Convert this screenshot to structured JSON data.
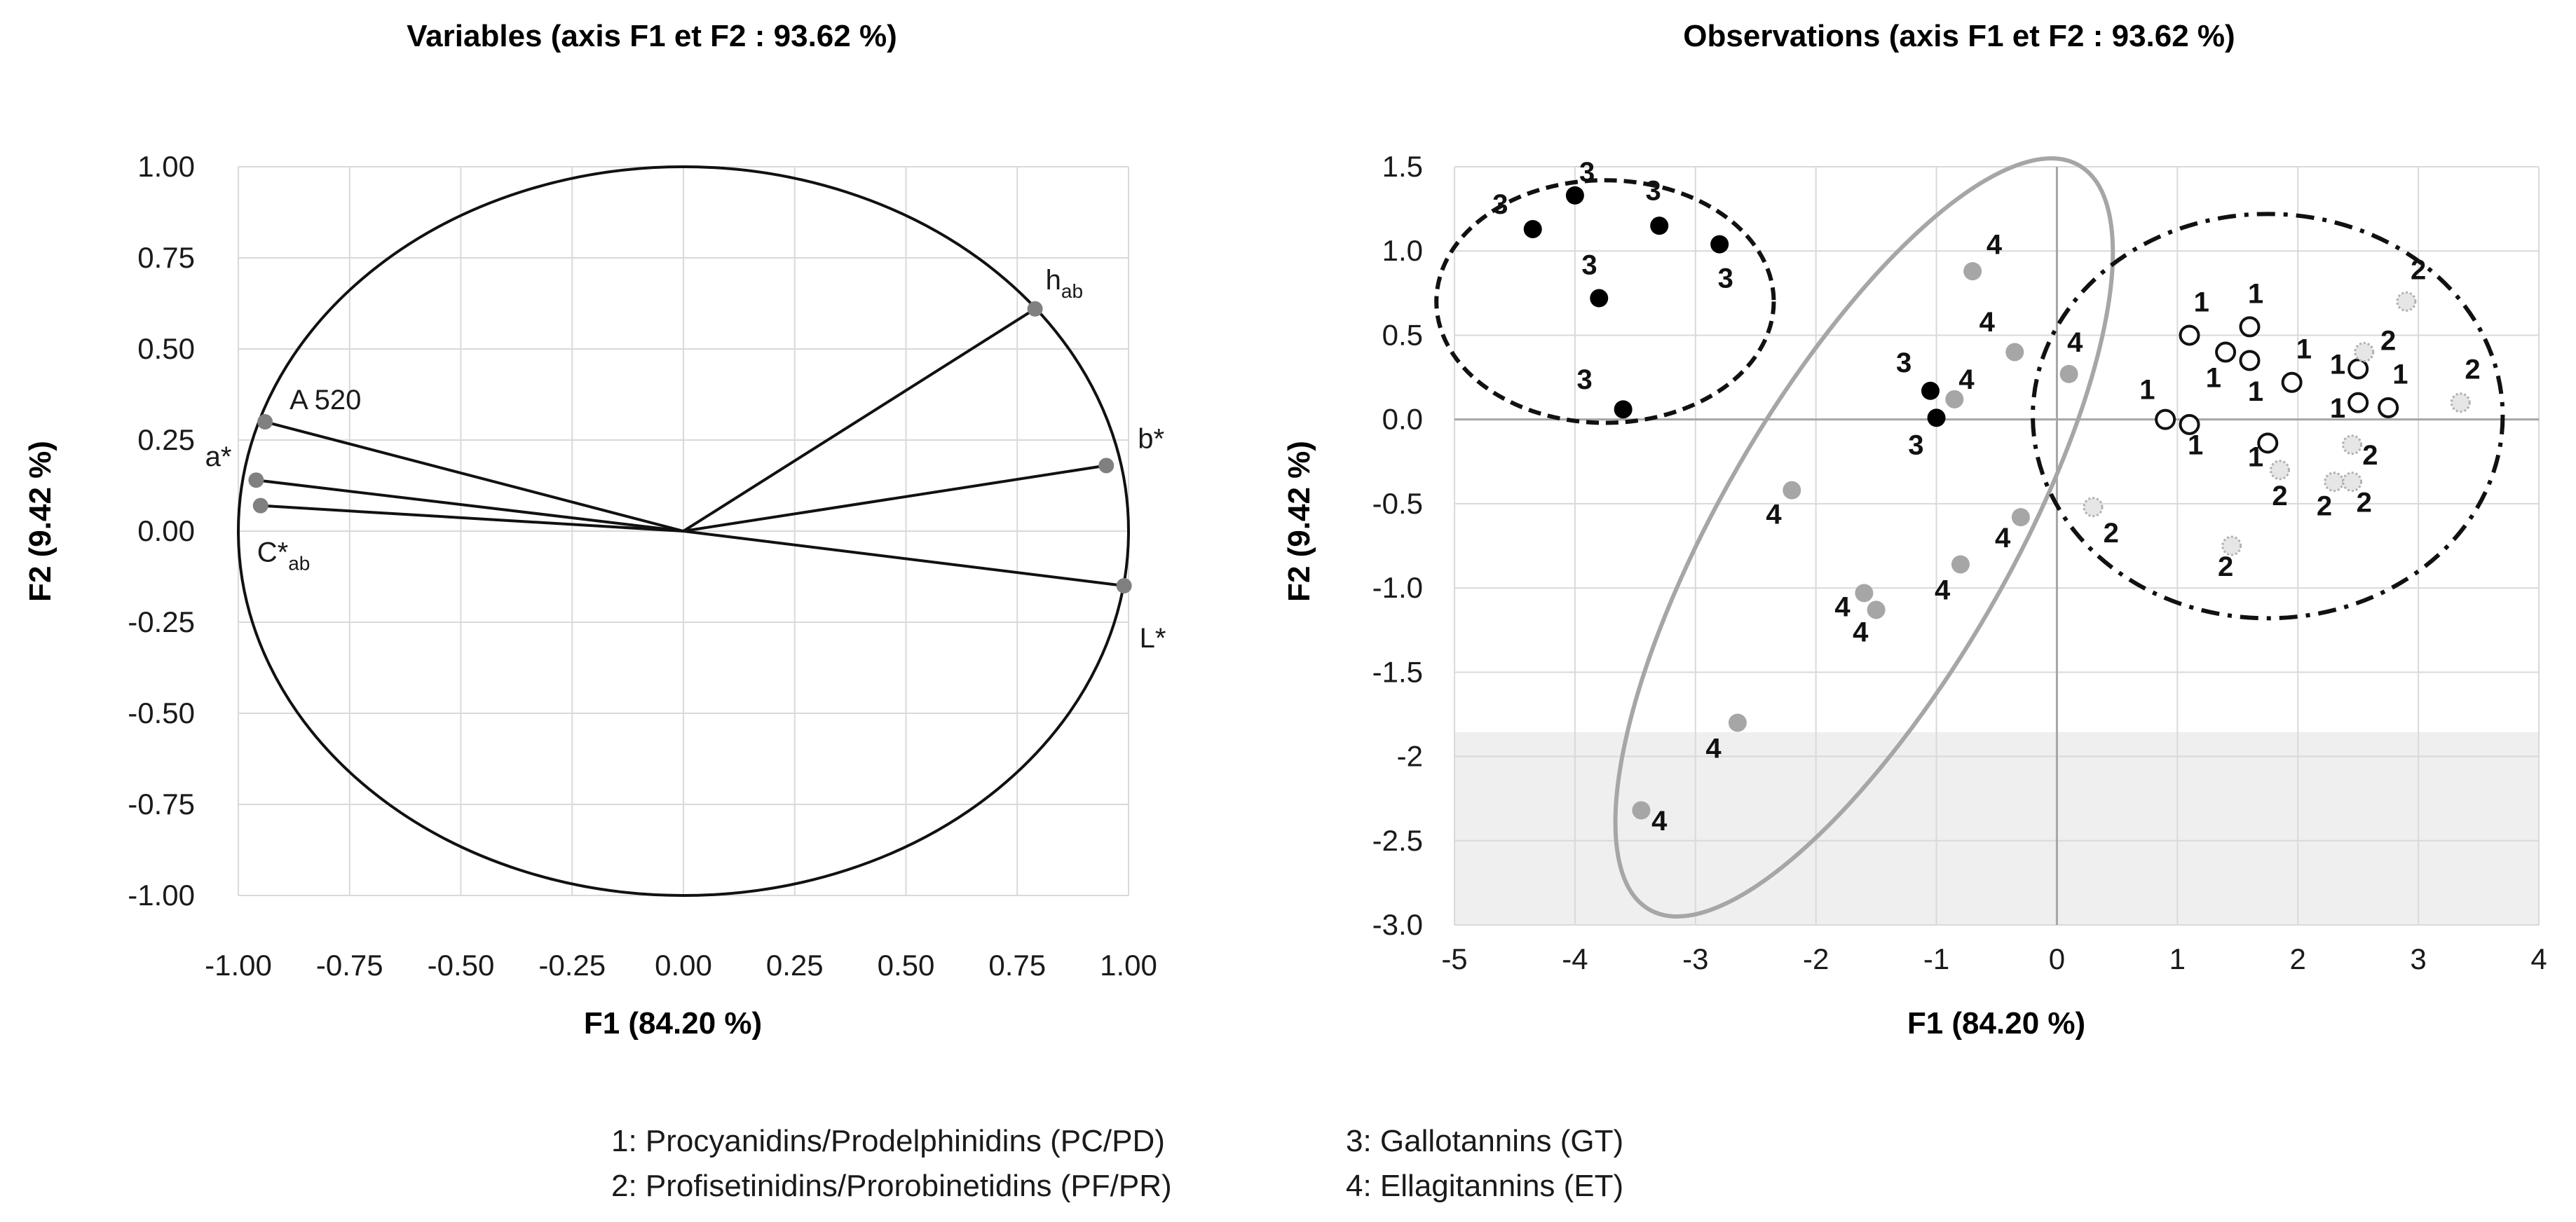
{
  "chart_data": [
    {
      "type": "scatter",
      "subtype": "correlation-circle",
      "title": "Variables (axis F1 et F2 : 93.62 %)",
      "xlabel": "F1 (84.20 %)",
      "ylabel": "F2 (9.42 %)",
      "xlim": [
        -1.0,
        1.0
      ],
      "ylim": [
        -1.0,
        1.0
      ],
      "x_ticks": [
        "-1.00",
        "-0.75",
        "-0.50",
        "-0.25",
        "0.00",
        "0.25",
        "0.50",
        "0.75",
        "1.00"
      ],
      "y_ticks": [
        "1.00",
        "0.75",
        "0.50",
        "0.25",
        "0.00",
        "-0.25",
        "-0.50",
        "-0.75",
        "-1.00"
      ],
      "grid": true,
      "variables": [
        {
          "name": "h",
          "sub": "ab",
          "x": 0.79,
          "y": 0.61
        },
        {
          "name": "b*",
          "sub": "",
          "x": 0.95,
          "y": 0.18
        },
        {
          "name": "L*",
          "sub": "",
          "x": 0.99,
          "y": -0.15
        },
        {
          "name": "A 520",
          "sub": "",
          "x": -0.94,
          "y": 0.3
        },
        {
          "name": "a*",
          "sub": "",
          "x": -0.96,
          "y": 0.14
        },
        {
          "name": "C*",
          "sub": "ab",
          "x": -0.95,
          "y": 0.07
        }
      ]
    },
    {
      "type": "scatter",
      "title": "Observations (axis F1 et F2 : 93.62 %)",
      "xlabel": "F1 (84.20 %)",
      "ylabel": "F2 (9.42 %)",
      "xlim": [
        -5,
        4
      ],
      "ylim": [
        -3.0,
        1.5
      ],
      "x_ticks": [
        "-5",
        "-4",
        "-3",
        "-2",
        "-1",
        "0",
        "1",
        "2",
        "3",
        "4"
      ],
      "y_ticks": [
        "1.5",
        "1.0",
        "0.5",
        "0.0",
        "-0.5",
        "-1.0",
        "-1.5",
        "-2",
        "-2.5",
        "-3.0"
      ],
      "grid": true,
      "series": [
        {
          "name": "1",
          "style": "open-circle",
          "points": [
            [
              1.1,
              0.5
            ],
            [
              1.6,
              0.55
            ],
            [
              1.4,
              0.4
            ],
            [
              1.6,
              0.35
            ],
            [
              1.95,
              0.22
            ],
            [
              2.5,
              0.3
            ],
            [
              2.5,
              0.1
            ],
            [
              2.75,
              0.07
            ],
            [
              0.9,
              0.0
            ],
            [
              1.1,
              -0.03
            ],
            [
              1.75,
              -0.14
            ]
          ]
        },
        {
          "name": "2",
          "style": "dotted-circle",
          "points": [
            [
              2.9,
              0.7
            ],
            [
              2.55,
              0.4
            ],
            [
              3.35,
              0.1
            ],
            [
              2.45,
              -0.15
            ],
            [
              1.85,
              -0.3
            ],
            [
              2.3,
              -0.37
            ],
            [
              2.45,
              -0.37
            ],
            [
              1.45,
              -0.75
            ],
            [
              0.3,
              -0.52
            ]
          ]
        },
        {
          "name": "3",
          "style": "filled-black",
          "points": [
            [
              -4.0,
              1.33
            ],
            [
              -4.35,
              1.13
            ],
            [
              -3.3,
              1.15
            ],
            [
              -2.8,
              1.04
            ],
            [
              -3.8,
              0.72
            ],
            [
              -3.6,
              0.06
            ],
            [
              -1.05,
              0.17
            ],
            [
              -1.0,
              0.01
            ]
          ]
        },
        {
          "name": "4",
          "style": "filled-gray",
          "points": [
            [
              -0.7,
              0.88
            ],
            [
              -0.35,
              0.4
            ],
            [
              0.1,
              0.27
            ],
            [
              -0.85,
              0.12
            ],
            [
              -2.2,
              -0.42
            ],
            [
              -0.3,
              -0.58
            ],
            [
              -0.8,
              -0.86
            ],
            [
              -1.6,
              -1.03
            ],
            [
              -1.5,
              -1.13
            ],
            [
              -2.65,
              -1.8
            ],
            [
              -3.45,
              -2.32
            ]
          ]
        }
      ],
      "point_labels": [
        {
          "text": "1",
          "x": 1.2,
          "y": 0.7
        },
        {
          "text": "1",
          "x": 1.65,
          "y": 0.75
        },
        {
          "text": "1",
          "x": 2.05,
          "y": 0.42
        },
        {
          "text": "1",
          "x": 1.3,
          "y": 0.25
        },
        {
          "text": "1",
          "x": 1.65,
          "y": 0.17
        },
        {
          "text": "1",
          "x": 2.33,
          "y": 0.33
        },
        {
          "text": "1",
          "x": 2.85,
          "y": 0.27
        },
        {
          "text": "1",
          "x": 2.33,
          "y": 0.07
        },
        {
          "text": "1",
          "x": 0.75,
          "y": 0.18
        },
        {
          "text": "1",
          "x": 1.15,
          "y": -0.15
        },
        {
          "text": "1",
          "x": 1.65,
          "y": -0.22
        },
        {
          "text": "2",
          "x": 3.0,
          "y": 0.89
        },
        {
          "text": "2",
          "x": 2.75,
          "y": 0.47
        },
        {
          "text": "2",
          "x": 3.45,
          "y": 0.3
        },
        {
          "text": "2",
          "x": 2.6,
          "y": -0.21
        },
        {
          "text": "2",
          "x": 1.85,
          "y": -0.45
        },
        {
          "text": "2",
          "x": 2.22,
          "y": -0.51
        },
        {
          "text": "2",
          "x": 2.55,
          "y": -0.49
        },
        {
          "text": "2",
          "x": 1.4,
          "y": -0.87
        },
        {
          "text": "2",
          "x": 0.45,
          "y": -0.67
        },
        {
          "text": "3",
          "x": -3.9,
          "y": 1.47
        },
        {
          "text": "3",
          "x": -4.62,
          "y": 1.28
        },
        {
          "text": "3",
          "x": -3.35,
          "y": 1.36
        },
        {
          "text": "3",
          "x": -2.75,
          "y": 0.84
        },
        {
          "text": "3",
          "x": -3.88,
          "y": 0.92
        },
        {
          "text": "3",
          "x": -3.92,
          "y": 0.24
        },
        {
          "text": "3",
          "x": -1.27,
          "y": 0.34
        },
        {
          "text": "3",
          "x": -1.17,
          "y": -0.15
        },
        {
          "text": "4",
          "x": -0.52,
          "y": 1.04
        },
        {
          "text": "4",
          "x": -0.58,
          "y": 0.58
        },
        {
          "text": "4",
          "x": 0.15,
          "y": 0.46
        },
        {
          "text": "4",
          "x": -0.75,
          "y": 0.24
        },
        {
          "text": "4",
          "x": -2.35,
          "y": -0.56
        },
        {
          "text": "4",
          "x": -0.45,
          "y": -0.7
        },
        {
          "text": "4",
          "x": -0.95,
          "y": -1.01
        },
        {
          "text": "4",
          "x": -1.78,
          "y": -1.11
        },
        {
          "text": "4",
          "x": -1.63,
          "y": -1.26
        },
        {
          "text": "4",
          "x": -2.85,
          "y": -1.95
        },
        {
          "text": "4",
          "x": -3.3,
          "y": -2.38
        }
      ],
      "ellipses": [
        {
          "group": "3",
          "style": "dashed-black",
          "cx": -3.75,
          "cy": 0.7,
          "rx": 1.4,
          "ry": 0.72,
          "angle": 0
        },
        {
          "group": "4",
          "style": "solid-gray",
          "cx": -1.6,
          "cy": -0.7,
          "rx": 1.2,
          "ry": 2.55,
          "angle": 30
        },
        {
          "group": "1 and 2",
          "style": "dashdot-black",
          "cx": 1.75,
          "cy": 0.02,
          "rx": 1.95,
          "ry": 1.2,
          "angle": 0
        }
      ]
    }
  ],
  "legend": [
    "1: Procyanidins/Prodelphinidins  (PC/PD)",
    "2: Profisetinidins/Prorobinetidins  (PF/PR)",
    "3: Gallotannins  (GT)",
    "4: Ellagitannins  (ET)"
  ]
}
